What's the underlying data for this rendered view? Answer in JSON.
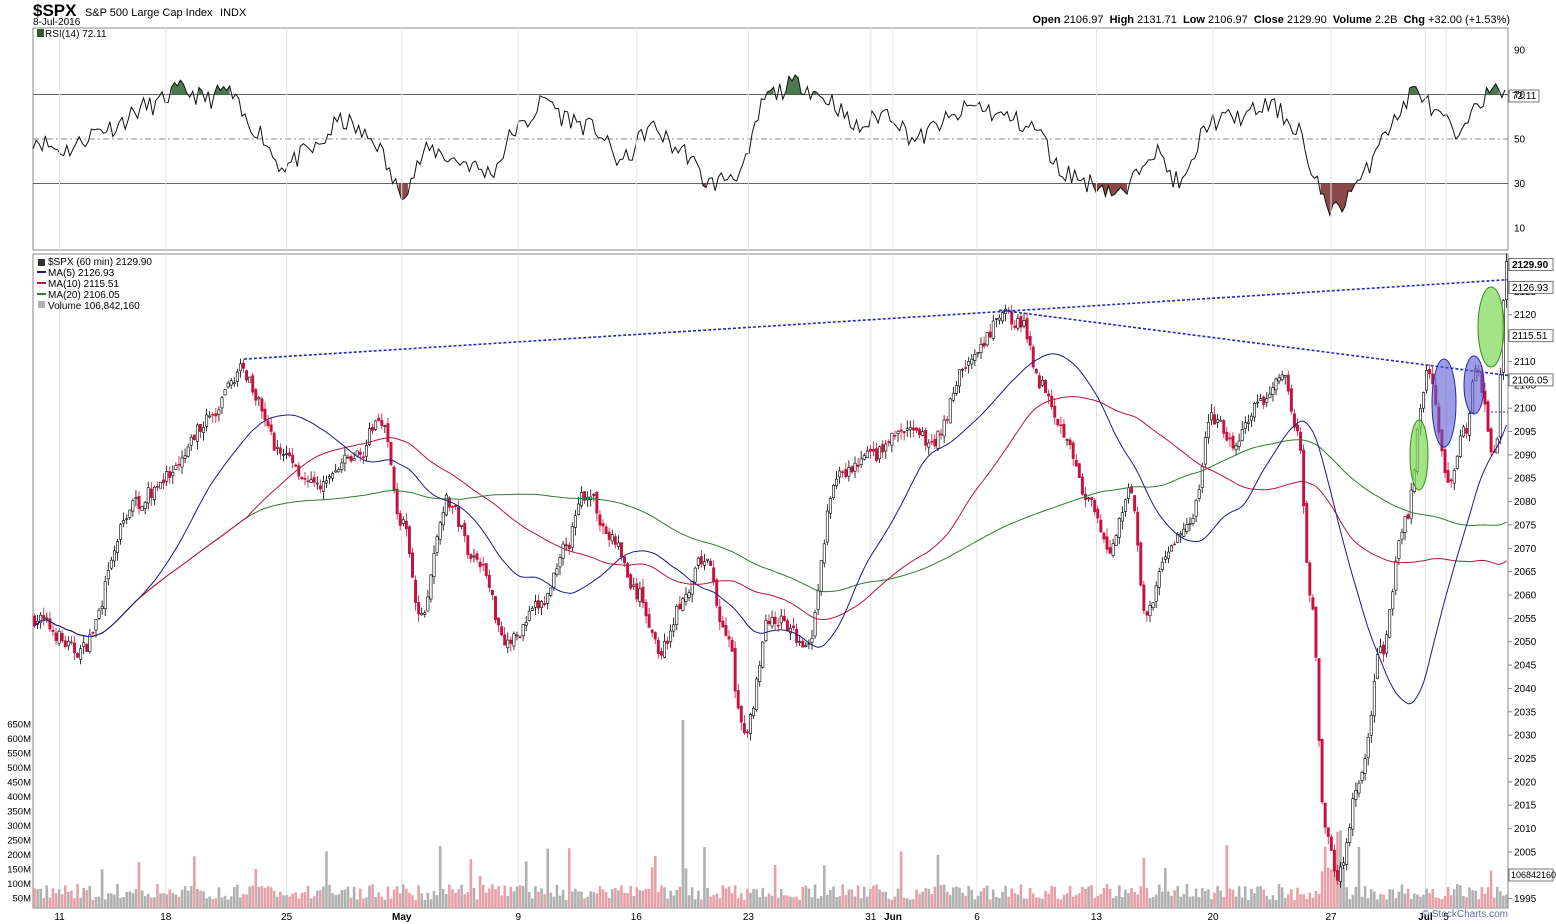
{
  "header": {
    "symbol": "$SPX",
    "name": "S&P 500 Large Cap Index",
    "exchange": "INDX",
    "date": "8-Jul-2016",
    "ohlc": {
      "open_label": "Open",
      "open": "2106.97",
      "high_label": "High",
      "high": "2131.71",
      "low_label": "Low",
      "low": "2106.97",
      "close_label": "Close",
      "close": "2129.90",
      "volume_label": "Volume",
      "volume": "2.2B",
      "chg_label": "Chg",
      "chg": "+32.00 (+1.53%)"
    },
    "brand": "© StockCharts.com"
  },
  "rsi_panel": {
    "legend": "RSI(14) 72.11",
    "current_tag": "72.11",
    "levels": [
      "90",
      "70",
      "50",
      "30",
      "10"
    ]
  },
  "price_panel": {
    "legend_main": "$SPX (60 min) 2129.90",
    "legend_ma5": "MA(5) 2126.93",
    "legend_ma10": "MA(10) 2115.51",
    "legend_ma20": "MA(20) 2106.05",
    "legend_vol": "Volume 106,842,160",
    "tags": {
      "close": "2129.90",
      "ma5": "2126.93",
      "ma10": "2115.51",
      "ma20": "2106.05",
      "volume": "106842160"
    },
    "colors": {
      "up": "#000000",
      "down": "#c8103c",
      "ma5": "#1a1a8c",
      "ma10": "#b8143c",
      "ma20": "#2e7d32",
      "trend": "#1f2fbf",
      "vol_up": "#b0b0b0",
      "vol_down": "#e8a0a8"
    }
  },
  "chart_data": {
    "type": "candlestick",
    "symbol": "$SPX",
    "interval": "60 min",
    "ylim": [
      1993,
      2133
    ],
    "y_ticks": [
      1995,
      2000,
      2005,
      2010,
      2015,
      2020,
      2025,
      2030,
      2035,
      2040,
      2045,
      2050,
      2055,
      2060,
      2065,
      2070,
      2075,
      2080,
      2085,
      2090,
      2095,
      2100,
      2105,
      2110,
      2115,
      2120,
      2125
    ],
    "volume_ticks": [
      "50M",
      "100M",
      "150M",
      "200M",
      "250M",
      "300M",
      "350M",
      "400M",
      "450M",
      "500M",
      "550M",
      "600M",
      "650M"
    ],
    "x_labels": [
      {
        "label": "11",
        "frac": 0.018
      },
      {
        "label": "18",
        "frac": 0.09
      },
      {
        "label": "25",
        "frac": 0.172
      },
      {
        "label": "May",
        "frac": 0.25
      },
      {
        "label": "9",
        "frac": 0.329
      },
      {
        "label": "16",
        "frac": 0.409
      },
      {
        "label": "23",
        "frac": 0.485
      },
      {
        "label": "31",
        "frac": 0.568
      },
      {
        "label": "Jun",
        "frac": 0.583
      },
      {
        "label": "6",
        "frac": 0.64
      },
      {
        "label": "13",
        "frac": 0.721
      },
      {
        "label": "20",
        "frac": 0.8
      },
      {
        "label": "27",
        "frac": 0.88
      },
      {
        "label": "Jul",
        "frac": 0.944
      },
      {
        "label": "5",
        "frac": 0.958
      }
    ],
    "close_anchors": [
      [
        0,
        2055
      ],
      [
        0.03,
        2048
      ],
      [
        0.07,
        2080
      ],
      [
        0.09,
        2085
      ],
      [
        0.12,
        2098
      ],
      [
        0.14,
        2108
      ],
      [
        0.17,
        2090
      ],
      [
        0.19,
        2083
      ],
      [
        0.22,
        2090
      ],
      [
        0.235,
        2098
      ],
      [
        0.25,
        2075
      ],
      [
        0.262,
        2055
      ],
      [
        0.28,
        2080
      ],
      [
        0.3,
        2068
      ],
      [
        0.322,
        2050
      ],
      [
        0.345,
        2058
      ],
      [
        0.36,
        2070
      ],
      [
        0.375,
        2082
      ],
      [
        0.392,
        2072
      ],
      [
        0.41,
        2060
      ],
      [
        0.425,
        2048
      ],
      [
        0.44,
        2058
      ],
      [
        0.455,
        2068
      ],
      [
        0.47,
        2052
      ],
      [
        0.482,
        2030
      ],
      [
        0.5,
        2055
      ],
      [
        0.525,
        2050
      ],
      [
        0.545,
        2085
      ],
      [
        0.57,
        2090
      ],
      [
        0.59,
        2095
      ],
      [
        0.61,
        2093
      ],
      [
        0.635,
        2110
      ],
      [
        0.66,
        2120
      ],
      [
        0.67,
        2118
      ],
      [
        0.685,
        2105
      ],
      [
        0.7,
        2095
      ],
      [
        0.715,
        2080
      ],
      [
        0.73,
        2070
      ],
      [
        0.745,
        2083
      ],
      [
        0.755,
        2055
      ],
      [
        0.77,
        2070
      ],
      [
        0.785,
        2075
      ],
      [
        0.8,
        2098
      ],
      [
        0.815,
        2092
      ],
      [
        0.83,
        2100
      ],
      [
        0.848,
        2107
      ],
      [
        0.858,
        2095
      ],
      [
        0.867,
        2060
      ],
      [
        0.877,
        2010
      ],
      [
        0.886,
        2000
      ],
      [
        0.9,
        2020
      ],
      [
        0.915,
        2048
      ],
      [
        0.93,
        2075
      ],
      [
        0.947,
        2108
      ],
      [
        0.96,
        2085
      ],
      [
        0.972,
        2095
      ],
      [
        0.98,
        2108
      ],
      [
        0.992,
        2090
      ],
      [
        1.0,
        2129.9
      ]
    ],
    "rsi": {
      "ylim": [
        0,
        100
      ],
      "overbought": 70,
      "oversold": 30,
      "mid": 50,
      "current": 72.11,
      "anchors": [
        [
          0,
          50
        ],
        [
          0.02,
          45
        ],
        [
          0.05,
          55
        ],
        [
          0.08,
          65
        ],
        [
          0.1,
          72
        ],
        [
          0.12,
          68
        ],
        [
          0.13,
          72
        ],
        [
          0.15,
          55
        ],
        [
          0.17,
          38
        ],
        [
          0.19,
          45
        ],
        [
          0.21,
          58
        ],
        [
          0.23,
          50
        ],
        [
          0.25,
          27
        ],
        [
          0.27,
          45
        ],
        [
          0.29,
          40
        ],
        [
          0.31,
          35
        ],
        [
          0.33,
          55
        ],
        [
          0.35,
          68
        ],
        [
          0.36,
          60
        ],
        [
          0.38,
          55
        ],
        [
          0.4,
          40
        ],
        [
          0.42,
          55
        ],
        [
          0.44,
          45
        ],
        [
          0.46,
          30
        ],
        [
          0.48,
          35
        ],
        [
          0.5,
          70
        ],
        [
          0.52,
          75
        ],
        [
          0.54,
          68
        ],
        [
          0.56,
          55
        ],
        [
          0.58,
          62
        ],
        [
          0.6,
          50
        ],
        [
          0.62,
          58
        ],
        [
          0.64,
          65
        ],
        [
          0.66,
          60
        ],
        [
          0.68,
          55
        ],
        [
          0.7,
          35
        ],
        [
          0.72,
          30
        ],
        [
          0.74,
          25
        ],
        [
          0.76,
          45
        ],
        [
          0.78,
          30
        ],
        [
          0.8,
          58
        ],
        [
          0.82,
          60
        ],
        [
          0.84,
          65
        ],
        [
          0.86,
          55
        ],
        [
          0.87,
          30
        ],
        [
          0.885,
          18
        ],
        [
          0.9,
          30
        ],
        [
          0.92,
          55
        ],
        [
          0.94,
          72
        ],
        [
          0.955,
          60
        ],
        [
          0.97,
          50
        ],
        [
          0.98,
          68
        ],
        [
          1.0,
          72.11
        ]
      ]
    },
    "trend_lines": [
      {
        "from": [
          0.143,
          2110.5
        ],
        "to": [
          1.0,
          2127.5
        ]
      },
      {
        "from": [
          0.655,
          2121
        ],
        "to": [
          1.0,
          2107
        ]
      }
    ]
  }
}
